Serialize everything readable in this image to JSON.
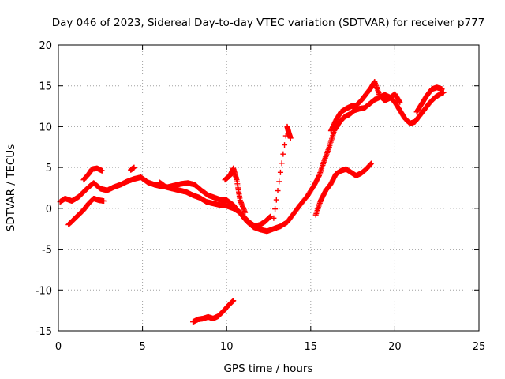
{
  "chart_data": {
    "type": "scatter",
    "title": "Day 046 of 2023, Sidereal Day-to-day VTEC variation (SDTVAR) for receiver p777",
    "xlabel": "GPS time / hours",
    "ylabel": "SDTVAR / TECUs",
    "xlim": [
      0,
      25
    ],
    "ylim": [
      -15,
      20
    ],
    "xticks": [
      0,
      5,
      10,
      15,
      20,
      25
    ],
    "xtick_labels": [
      "0",
      "5",
      "10",
      "15",
      "20",
      "25"
    ],
    "yticks": [
      -15,
      -10,
      -5,
      0,
      5,
      10,
      15,
      20
    ],
    "ytick_labels": [
      "-15",
      "-10",
      "-5",
      "0",
      "5",
      "10",
      "15",
      "20"
    ],
    "grid": true,
    "marker": "+",
    "color": "#ff0000",
    "series": [
      {
        "name": "main",
        "x": [
          0.1,
          0.4,
          0.8,
          1.2,
          1.5,
          1.8,
          2.1,
          2.5,
          2.9,
          3.3,
          3.7,
          4.1,
          4.5,
          4.9,
          5.3,
          5.7,
          6.1,
          6.5,
          6.9,
          7.3,
          7.7,
          8.1,
          8.5,
          8.9,
          9.3,
          9.7,
          10.0,
          10.4,
          10.8,
          11.2,
          11.6,
          12.0,
          12.4,
          12.8,
          13.2,
          13.6,
          14.0,
          14.4,
          14.8,
          15.2,
          15.5,
          15.8,
          16.1,
          16.4,
          16.7,
          17.0,
          17.3,
          17.6,
          17.9,
          18.2,
          18.5,
          18.8,
          19.1,
          19.4,
          19.7,
          20.0,
          20.3,
          20.6,
          20.9,
          21.2,
          21.5,
          21.8,
          22.1,
          22.4,
          22.7,
          22.9
        ],
        "y": [
          0.8,
          1.2,
          0.9,
          1.4,
          2.0,
          2.6,
          3.1,
          2.4,
          2.2,
          2.6,
          2.9,
          3.3,
          3.6,
          3.8,
          3.2,
          2.9,
          2.7,
          2.6,
          2.8,
          3.0,
          3.1,
          2.9,
          2.2,
          1.6,
          1.3,
          1.0,
          1.0,
          0.4,
          -0.6,
          -1.6,
          -2.3,
          -2.6,
          -2.8,
          -2.5,
          -2.2,
          -1.7,
          -0.6,
          0.5,
          1.5,
          2.8,
          4.0,
          5.8,
          7.5,
          9.5,
          10.5,
          11.2,
          11.5,
          12.0,
          12.2,
          12.3,
          12.8,
          13.3,
          13.6,
          13.9,
          13.6,
          13.0,
          12.0,
          11.0,
          10.4,
          10.6,
          11.4,
          12.2,
          13.0,
          13.6,
          14.0,
          14.2
        ]
      },
      {
        "name": "upper",
        "x": [
          1.5,
          1.8,
          2.0,
          2.3,
          2.6,
          4.3,
          4.5,
          9.9,
          10.2,
          10.4,
          10.6,
          10.8,
          11.1,
          12.8,
          13.6,
          13.7,
          13.8,
          16.2,
          16.5,
          16.8,
          17.1,
          17.4,
          17.7,
          18.0,
          18.3,
          18.6,
          18.8,
          19.1,
          19.4,
          19.7,
          20.0,
          20.3,
          21.3,
          21.6,
          21.9,
          22.2,
          22.5,
          22.8
        ],
        "y": [
          3.5,
          4.2,
          4.8,
          4.9,
          4.6,
          4.7,
          5.0,
          3.5,
          4.0,
          4.9,
          3.5,
          1.0,
          -0.5,
          -1.2,
          10.0,
          9.2,
          8.6,
          9.5,
          10.8,
          11.8,
          12.2,
          12.5,
          12.6,
          13.2,
          14.0,
          14.8,
          15.5,
          13.8,
          13.2,
          13.5,
          14.0,
          13.0,
          11.8,
          12.8,
          13.8,
          14.6,
          14.8,
          14.6
        ]
      },
      {
        "name": "lower",
        "x": [
          0.6,
          0.9,
          1.2,
          1.5,
          1.8,
          2.1,
          2.4,
          2.7,
          6.0,
          6.4,
          6.8,
          7.2,
          7.6,
          8.0,
          8.4,
          8.8,
          9.2,
          9.6,
          10.0,
          10.4,
          10.8,
          11.1,
          11.4,
          11.7,
          12.0,
          12.3,
          12.6,
          15.3,
          15.6,
          15.9,
          16.2,
          16.5,
          16.8,
          17.1,
          17.4,
          17.7,
          18.0,
          18.3,
          18.6
        ],
        "y": [
          -2.0,
          -1.4,
          -0.8,
          -0.2,
          0.6,
          1.2,
          1.0,
          0.9,
          3.2,
          2.6,
          2.4,
          2.2,
          2.0,
          1.6,
          1.3,
          0.8,
          0.6,
          0.4,
          0.3,
          0.0,
          -0.5,
          -1.2,
          -1.8,
          -2.2,
          -2.0,
          -1.6,
          -1.0,
          -0.8,
          1.0,
          2.2,
          3.0,
          4.2,
          4.6,
          4.8,
          4.4,
          4.0,
          4.3,
          4.8,
          5.5
        ]
      },
      {
        "name": "isolated-low",
        "x": [
          8.0,
          8.3,
          8.6,
          8.9,
          9.2,
          9.5,
          9.8,
          10.1,
          10.4
        ],
        "y": [
          -13.9,
          -13.6,
          -13.5,
          -13.3,
          -13.5,
          -13.2,
          -12.6,
          -11.9,
          -11.3
        ]
      }
    ]
  }
}
